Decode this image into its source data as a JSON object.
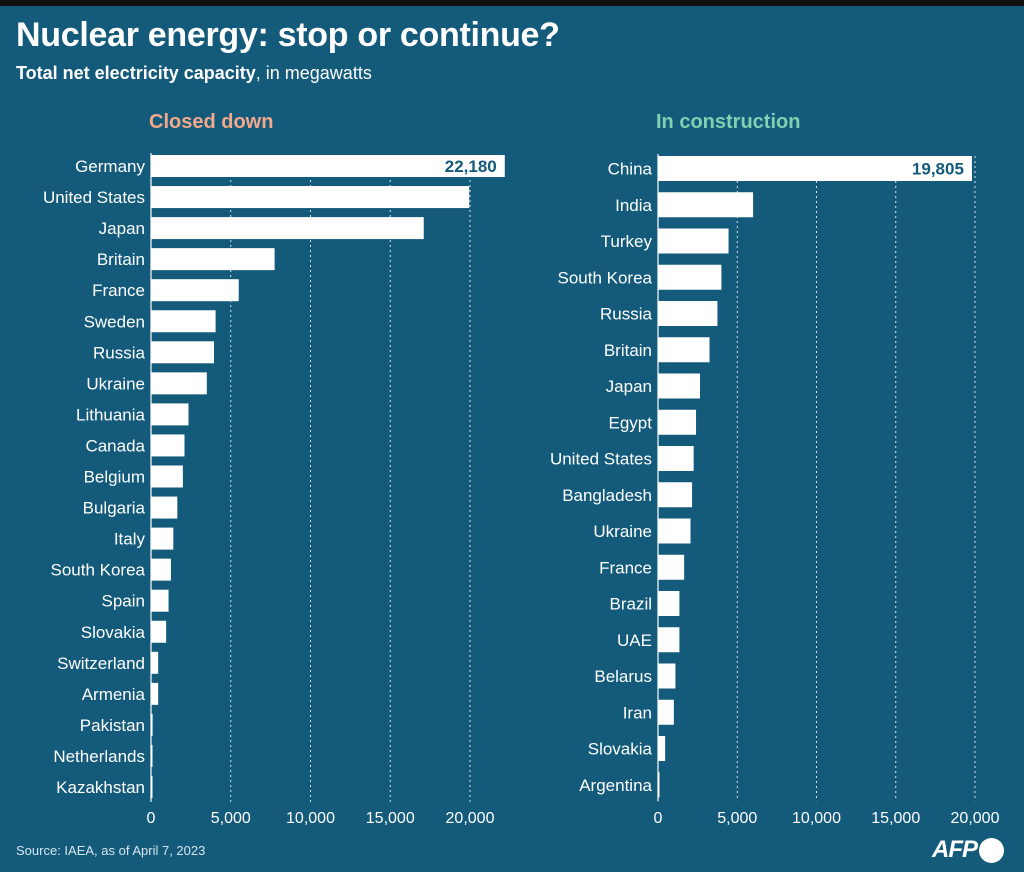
{
  "title": "Nuclear energy: stop or continue?",
  "subtitle_bold": "Total net electricity capacity",
  "subtitle_rest": ", in megawatts",
  "source": "Source: IAEA, as of April 7, 2023",
  "logo": "AFP",
  "colors": {
    "background": "#135a7b",
    "bar": "#ffffff",
    "closed_title": "#f4a88a",
    "construction_title": "#7ed1b1",
    "value_label": "#135a7b"
  },
  "chart_data": [
    {
      "type": "bar",
      "orientation": "horizontal",
      "title": "Closed down",
      "categories": [
        "Germany",
        "United States",
        "Japan",
        "Britain",
        "France",
        "Sweden",
        "Russia",
        "Ukraine",
        "Lithuania",
        "Canada",
        "Belgium",
        "Bulgaria",
        "Italy",
        "South Korea",
        "Spain",
        "Slovakia",
        "Switzerland",
        "Armenia",
        "Pakistan",
        "Netherlands",
        "Kazakhstan"
      ],
      "values": [
        22180,
        19950,
        17100,
        7750,
        5500,
        4050,
        3950,
        3500,
        2350,
        2100,
        2000,
        1650,
        1400,
        1250,
        1100,
        950,
        450,
        450,
        100,
        60,
        50
      ],
      "data_labels": [
        {
          "category": "Germany",
          "label": "22,180"
        }
      ],
      "xlim": [
        0,
        22180
      ],
      "xticks": [
        0,
        5000,
        10000,
        15000,
        20000
      ],
      "xtick_labels": [
        "0",
        "5,000",
        "10,000",
        "15,000",
        "20,000"
      ],
      "grid": true
    },
    {
      "type": "bar",
      "orientation": "horizontal",
      "title": "In construction",
      "categories": [
        "China",
        "India",
        "Turkey",
        "South Korea",
        "Russia",
        "Britain",
        "Japan",
        "Egypt",
        "United States",
        "Bangladesh",
        "Ukraine",
        "France",
        "Brazil",
        "UAE",
        "Belarus",
        "Iran",
        "Slovakia",
        "Argentina"
      ],
      "values": [
        19805,
        6000,
        4450,
        4000,
        3750,
        3250,
        2650,
        2400,
        2250,
        2150,
        2050,
        1650,
        1350,
        1350,
        1100,
        1000,
        450,
        30
      ],
      "data_labels": [
        {
          "category": "China",
          "label": "19,805"
        }
      ],
      "xlim": [
        0,
        20000
      ],
      "xticks": [
        0,
        5000,
        10000,
        15000,
        20000
      ],
      "xtick_labels": [
        "0",
        "5,000",
        "10,000",
        "15,000",
        "20,000"
      ],
      "grid": true
    }
  ]
}
